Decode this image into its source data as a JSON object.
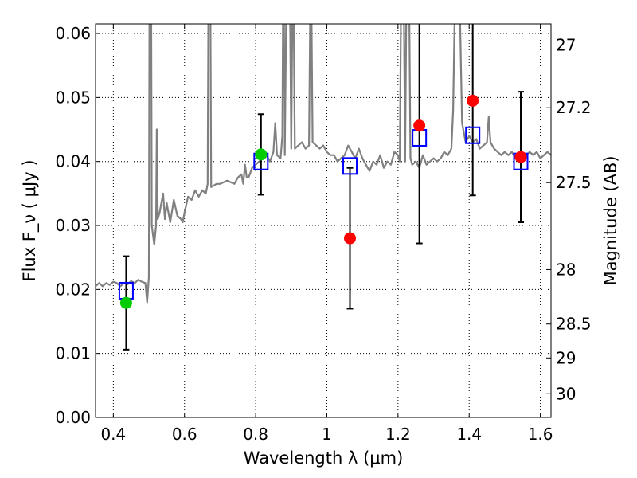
{
  "chart_data": {
    "type": "scatter",
    "xlabel": "Wavelength  λ (μm)",
    "ylabel": "Flux  F_ν  ( μJy )",
    "ylabel_right": "Magnitude (AB)",
    "xlim": [
      0.35,
      1.63
    ],
    "ylim": [
      0.0,
      0.0615
    ],
    "x_ticks": [
      0.4,
      0.6,
      0.8,
      1.0,
      1.2,
      1.4,
      1.6
    ],
    "x_tick_labels": [
      "0.4",
      "0.6",
      "0.8",
      "1",
      "1.2",
      "1.4",
      "1.6"
    ],
    "y_ticks": [
      0.0,
      0.01,
      0.02,
      0.03,
      0.04,
      0.05,
      0.06
    ],
    "y_tick_labels": [
      "0.00",
      "0.01",
      "0.02",
      "0.03",
      "0.04",
      "0.05",
      "0.06"
    ],
    "right_ticks": [
      {
        "label": "27",
        "flux": 0.0582
      },
      {
        "label": "27.2",
        "flux": 0.0484
      },
      {
        "label": "27.5",
        "flux": 0.0367
      },
      {
        "label": "28",
        "flux": 0.0231
      },
      {
        "label": "28.5",
        "flux": 0.0146
      },
      {
        "label": "29",
        "flux": 0.0093
      },
      {
        "label": "30",
        "flux": 0.0037
      }
    ],
    "grid": true,
    "series": [
      {
        "kind": "spectrum",
        "color": "#808080",
        "points": [
          [
            0.35,
            0.0205
          ],
          [
            0.36,
            0.021
          ],
          [
            0.37,
            0.0205
          ],
          [
            0.38,
            0.021
          ],
          [
            0.39,
            0.0207
          ],
          [
            0.4,
            0.0212
          ],
          [
            0.41,
            0.021
          ],
          [
            0.42,
            0.0205
          ],
          [
            0.43,
            0.021
          ],
          [
            0.44,
            0.0208
          ],
          [
            0.45,
            0.0213
          ],
          [
            0.46,
            0.021
          ],
          [
            0.47,
            0.0215
          ],
          [
            0.48,
            0.0212
          ],
          [
            0.49,
            0.021
          ],
          [
            0.495,
            0.018
          ],
          [
            0.5,
            0.022
          ],
          [
            0.502,
            0.075
          ],
          [
            0.506,
            0.075
          ],
          [
            0.508,
            0.03
          ],
          [
            0.515,
            0.027
          ],
          [
            0.52,
            0.03
          ],
          [
            0.522,
            0.045
          ],
          [
            0.525,
            0.031
          ],
          [
            0.53,
            0.032
          ],
          [
            0.54,
            0.035
          ],
          [
            0.545,
            0.031
          ],
          [
            0.55,
            0.0335
          ],
          [
            0.56,
            0.0305
          ],
          [
            0.57,
            0.034
          ],
          [
            0.58,
            0.0315
          ],
          [
            0.59,
            0.031
          ],
          [
            0.595,
            0.0305
          ],
          [
            0.6,
            0.032
          ],
          [
            0.61,
            0.0345
          ],
          [
            0.62,
            0.034
          ],
          [
            0.63,
            0.0355
          ],
          [
            0.64,
            0.0345
          ],
          [
            0.65,
            0.0355
          ],
          [
            0.66,
            0.035
          ],
          [
            0.665,
            0.0365
          ],
          [
            0.668,
            0.075
          ],
          [
            0.672,
            0.075
          ],
          [
            0.675,
            0.036
          ],
          [
            0.69,
            0.0365
          ],
          [
            0.7,
            0.0365
          ],
          [
            0.72,
            0.037
          ],
          [
            0.74,
            0.0365
          ],
          [
            0.75,
            0.0375
          ],
          [
            0.76,
            0.038
          ],
          [
            0.765,
            0.0365
          ],
          [
            0.77,
            0.0395
          ],
          [
            0.775,
            0.0375
          ],
          [
            0.78,
            0.0375
          ],
          [
            0.79,
            0.039
          ],
          [
            0.8,
            0.0395
          ],
          [
            0.81,
            0.04
          ],
          [
            0.82,
            0.0405
          ],
          [
            0.83,
            0.041
          ],
          [
            0.84,
            0.04
          ],
          [
            0.85,
            0.0415
          ],
          [
            0.855,
            0.046
          ],
          [
            0.86,
            0.041
          ],
          [
            0.87,
            0.0405
          ],
          [
            0.875,
            0.044
          ],
          [
            0.878,
            0.075
          ],
          [
            0.882,
            0.041
          ],
          [
            0.888,
            0.075
          ],
          [
            0.895,
            0.075
          ],
          [
            0.9,
            0.042
          ],
          [
            0.905,
            0.075
          ],
          [
            0.91,
            0.042
          ],
          [
            0.92,
            0.0425
          ],
          [
            0.93,
            0.043
          ],
          [
            0.94,
            0.042
          ],
          [
            0.95,
            0.0425
          ],
          [
            0.955,
            0.075
          ],
          [
            0.96,
            0.043
          ],
          [
            0.97,
            0.0425
          ],
          [
            0.98,
            0.042
          ],
          [
            0.99,
            0.0425
          ],
          [
            1.0,
            0.0415
          ],
          [
            1.01,
            0.041
          ],
          [
            1.02,
            0.041
          ],
          [
            1.03,
            0.04
          ],
          [
            1.04,
            0.0405
          ],
          [
            1.05,
            0.041
          ],
          [
            1.06,
            0.0425
          ],
          [
            1.07,
            0.0415
          ],
          [
            1.08,
            0.0405
          ],
          [
            1.09,
            0.042
          ],
          [
            1.1,
            0.0405
          ],
          [
            1.11,
            0.0395
          ],
          [
            1.12,
            0.0385
          ],
          [
            1.13,
            0.04
          ],
          [
            1.14,
            0.0395
          ],
          [
            1.15,
            0.041
          ],
          [
            1.16,
            0.039
          ],
          [
            1.17,
            0.04
          ],
          [
            1.18,
            0.0395
          ],
          [
            1.19,
            0.0415
          ],
          [
            1.2,
            0.041
          ],
          [
            1.205,
            0.04
          ],
          [
            1.21,
            0.075
          ],
          [
            1.215,
            0.075
          ],
          [
            1.22,
            0.04
          ],
          [
            1.225,
            0.075
          ],
          [
            1.23,
            0.075
          ],
          [
            1.235,
            0.0405
          ],
          [
            1.24,
            0.0395
          ],
          [
            1.25,
            0.04
          ],
          [
            1.26,
            0.039
          ],
          [
            1.27,
            0.041
          ],
          [
            1.28,
            0.0395
          ],
          [
            1.29,
            0.04
          ],
          [
            1.3,
            0.0405
          ],
          [
            1.31,
            0.04
          ],
          [
            1.32,
            0.0405
          ],
          [
            1.33,
            0.0415
          ],
          [
            1.34,
            0.041
          ],
          [
            1.35,
            0.042
          ],
          [
            1.355,
            0.048
          ],
          [
            1.36,
            0.065
          ],
          [
            1.365,
            0.075
          ],
          [
            1.37,
            0.075
          ],
          [
            1.38,
            0.046
          ],
          [
            1.39,
            0.043
          ],
          [
            1.4,
            0.044
          ],
          [
            1.41,
            0.043
          ],
          [
            1.42,
            0.0435
          ],
          [
            1.43,
            0.042
          ],
          [
            1.44,
            0.0425
          ],
          [
            1.45,
            0.043
          ],
          [
            1.455,
            0.047
          ],
          [
            1.46,
            0.043
          ],
          [
            1.47,
            0.042
          ],
          [
            1.48,
            0.0415
          ],
          [
            1.49,
            0.041
          ],
          [
            1.5,
            0.0415
          ],
          [
            1.51,
            0.041
          ],
          [
            1.52,
            0.0415
          ],
          [
            1.53,
            0.0405
          ],
          [
            1.54,
            0.041
          ],
          [
            1.55,
            0.0405
          ],
          [
            1.56,
            0.041
          ],
          [
            1.57,
            0.0415
          ],
          [
            1.58,
            0.041
          ],
          [
            1.59,
            0.0415
          ],
          [
            1.6,
            0.0405
          ],
          [
            1.61,
            0.041
          ],
          [
            1.62,
            0.0415
          ],
          [
            1.63,
            0.041
          ]
        ]
      },
      {
        "kind": "model_boxes",
        "color": "#0000ff",
        "points": [
          [
            0.436,
            0.0198
          ],
          [
            0.815,
            0.04
          ],
          [
            1.065,
            0.0393
          ],
          [
            1.26,
            0.0437
          ],
          [
            1.41,
            0.0441
          ],
          [
            1.545,
            0.04
          ]
        ]
      },
      {
        "kind": "observed",
        "points": [
          {
            "x": 0.436,
            "y": 0.0179,
            "yerr": 0.0073,
            "color": "#00cc00"
          },
          {
            "x": 0.815,
            "y": 0.0411,
            "yerr": 0.0063,
            "color": "#00cc00"
          },
          {
            "x": 1.065,
            "y": 0.028,
            "yerr": 0.011,
            "color": "#ff0000"
          },
          {
            "x": 1.26,
            "y": 0.0456,
            "yerr": 0.0184,
            "color": "#ff0000"
          },
          {
            "x": 1.41,
            "y": 0.0495,
            "yerr": 0.0148,
            "color": "#ff0000"
          },
          {
            "x": 1.545,
            "y": 0.0407,
            "yerr": 0.0102,
            "color": "#ff0000"
          }
        ]
      }
    ]
  }
}
